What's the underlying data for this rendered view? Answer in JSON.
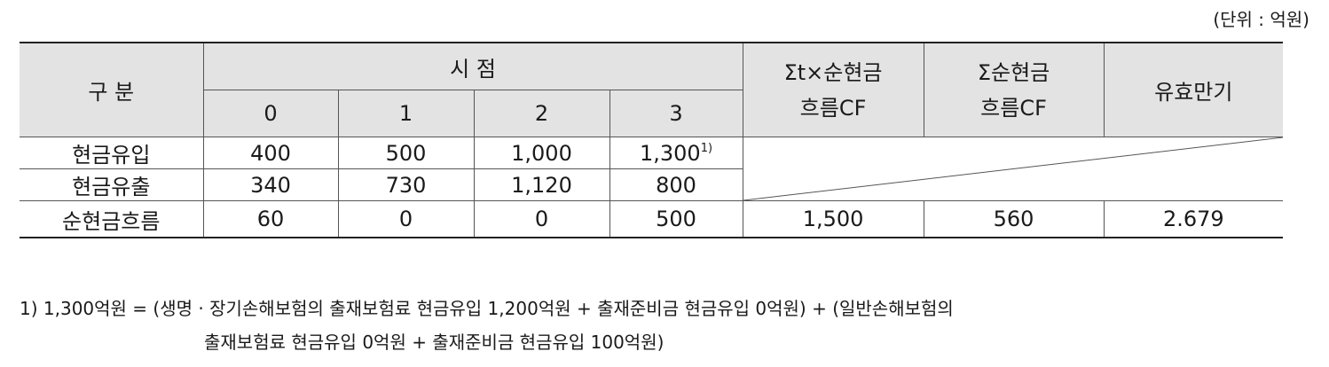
{
  "unit": "(단위 : 억원)",
  "header": {
    "category": "구 분",
    "timepoint": "시 점",
    "t0": "0",
    "t1": "1",
    "t2": "2",
    "t3": "3",
    "sum_t_cf_line1": "Σt×순현금",
    "sum_t_cf_line2": "흐름CF",
    "sum_cf_line1": "Σ순현금",
    "sum_cf_line2": "흐름CF",
    "duration": "유효만기"
  },
  "rows": [
    {
      "label": "현금유입",
      "v0": "400",
      "v1": "500",
      "v2": "1,000",
      "v3": "1,300",
      "v3_note": "1)"
    },
    {
      "label": "현금유출",
      "v0": "340",
      "v1": "730",
      "v2": "1,120",
      "v3": "800"
    },
    {
      "label": "순현금흐름",
      "v0": "60",
      "v1": "0",
      "v2": "0",
      "v3": "500",
      "sum_t_cf": "1,500",
      "sum_cf": "560",
      "duration": "2.679"
    }
  ],
  "footnote": {
    "line1": "1) 1,300억원 = (생명 · 장기손해보험의 출재보험료 현금유입 1,200억원 + 출재준비금 현금유입 0억원) + (일반손해보험의",
    "line2": "출재보험료 현금유입 0억원 + 출재준비금 현금유입 100억원)"
  }
}
